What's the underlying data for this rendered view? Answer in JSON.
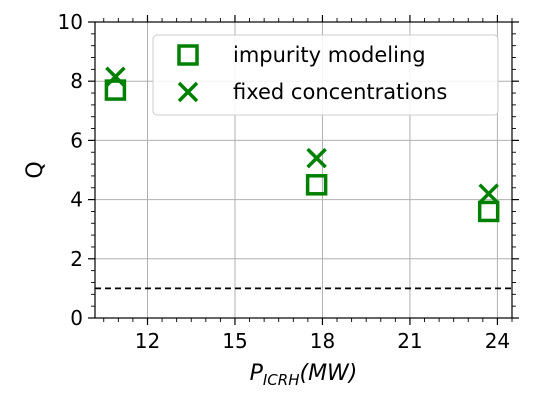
{
  "chart_data": {
    "type": "scatter",
    "xlabel": "P_ICRH(MW)",
    "xlabel_main": "P",
    "xlabel_sub": "ICRH",
    "xlabel_rest": "(MW)",
    "ylabel": "Q",
    "xlim": [
      10.2,
      24.5
    ],
    "ylim": [
      0,
      10
    ],
    "xticks": [
      12,
      15,
      18,
      21,
      24
    ],
    "yticks": [
      0,
      2,
      4,
      6,
      8,
      10
    ],
    "grid": true,
    "legend_position": "top-right",
    "reference_line": {
      "y": 1,
      "style": "dashed",
      "color": "#000000"
    },
    "series": [
      {
        "name": "impurity modeling",
        "marker": "square",
        "color": "#008000",
        "x": [
          10.9,
          17.8,
          23.7
        ],
        "y": [
          7.7,
          4.5,
          3.6
        ]
      },
      {
        "name": "fixed concentrations",
        "marker": "x",
        "color": "#008000",
        "x": [
          10.9,
          17.8,
          23.7
        ],
        "y": [
          8.15,
          5.4,
          4.2
        ]
      }
    ]
  }
}
